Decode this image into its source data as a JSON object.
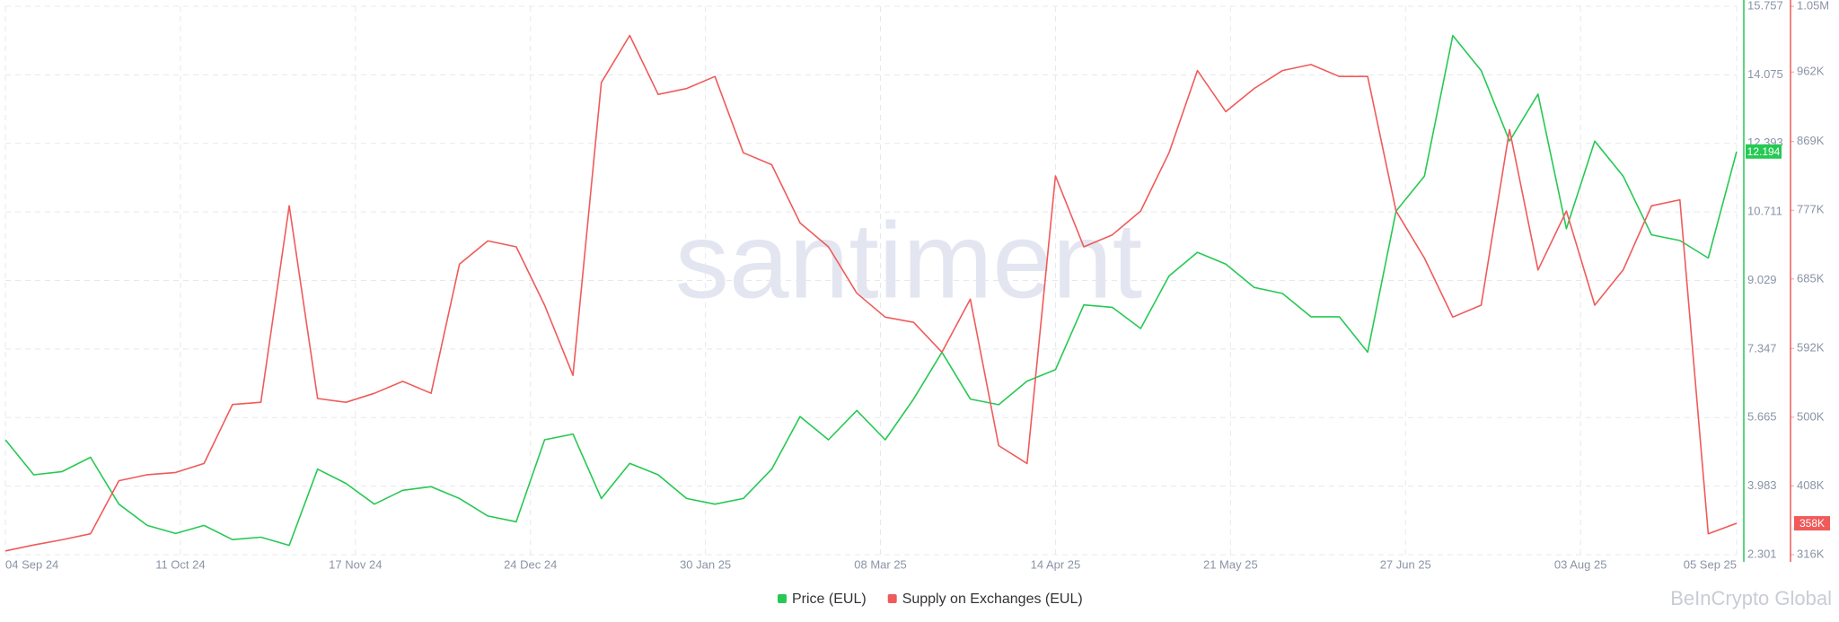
{
  "chart_data": {
    "type": "line",
    "watermark": "santiment",
    "credit": "BeInCrypto Global",
    "x": [
      "04 Sep 24",
      "10 Sep 24",
      "16 Sep 24",
      "22 Sep 24",
      "28 Sep 24",
      "04 Oct 24",
      "10 Oct 24",
      "16 Oct 24",
      "22 Oct 24",
      "28 Oct 24",
      "03 Nov 24",
      "09 Nov 24",
      "15 Nov 24",
      "21 Nov 24",
      "27 Nov 24",
      "03 Dec 24",
      "09 Dec 24",
      "15 Dec 24",
      "21 Dec 24",
      "27 Dec 24",
      "02 Jan 25",
      "08 Jan 25",
      "14 Jan 25",
      "20 Jan 25",
      "26 Jan 25",
      "01 Feb 25",
      "07 Feb 25",
      "13 Feb 25",
      "19 Feb 25",
      "25 Feb 25",
      "03 Mar 25",
      "09 Mar 25",
      "15 Mar 25",
      "21 Mar 25",
      "27 Mar 25",
      "02 Apr 25",
      "08 Apr 25",
      "14 Apr 25",
      "20 Apr 25",
      "26 Apr 25",
      "02 May 25",
      "08 May 25",
      "14 May 25",
      "20 May 25",
      "26 May 25",
      "01 Jun 25",
      "07 Jun 25",
      "13 Jun 25",
      "19 Jun 25",
      "25 Jun 25",
      "01 Jul 25",
      "07 Jul 25",
      "13 Jul 25",
      "19 Jul 25",
      "25 Jul 25",
      "31 Jul 25",
      "06 Aug 25",
      "12 Aug 25",
      "18 Aug 25",
      "24 Aug 25",
      "30 Aug 25",
      "05 Sep 25"
    ],
    "xticks": [
      "04 Sep 24",
      "11 Oct 24",
      "17 Nov 24",
      "24 Dec 24",
      "30 Jan 25",
      "08 Mar 25",
      "14 Apr 25",
      "21 May 25",
      "27 Jun 25",
      "03 Aug 25",
      "05 Sep 25"
    ],
    "ylim": [
      2.301,
      15.757
    ],
    "yticks": [
      2.301,
      3.983,
      5.665,
      7.347,
      9.029,
      10.711,
      12.393,
      14.075,
      15.757
    ],
    "y2lim": [
      316000,
      1050000
    ],
    "y2ticks": [
      {
        "value": 316000,
        "label": "316K"
      },
      {
        "value": 408000,
        "label": "408K"
      },
      {
        "value": 500000,
        "label": "500K"
      },
      {
        "value": 592000,
        "label": "592K"
      },
      {
        "value": 685000,
        "label": "685K"
      },
      {
        "value": 777000,
        "label": "777K"
      },
      {
        "value": 869000,
        "label": "869K"
      },
      {
        "value": 962000,
        "label": "962K"
      },
      {
        "value": 1050000,
        "label": "1.05M"
      }
    ],
    "grid": true,
    "series": [
      {
        "name": "Price (EUL)",
        "color": "#26c953",
        "values": [
          5.12,
          4.26,
          4.34,
          4.69,
          3.54,
          3.02,
          2.82,
          3.02,
          2.67,
          2.73,
          2.53,
          4.4,
          4.05,
          3.54,
          3.88,
          3.97,
          3.68,
          3.25,
          3.11,
          5.12,
          5.26,
          3.68,
          4.54,
          4.26,
          3.68,
          3.54,
          3.68,
          4.4,
          5.69,
          5.12,
          5.84,
          5.12,
          6.12,
          7.27,
          6.12,
          5.98,
          6.56,
          6.84,
          8.43,
          8.37,
          7.85,
          9.14,
          9.72,
          9.43,
          8.86,
          8.71,
          8.14,
          8.14,
          7.27,
          10.73,
          11.59,
          15.04,
          14.18,
          12.45,
          13.6,
          10.3,
          12.45,
          11.59,
          10.15,
          10.01,
          9.58,
          12.194
        ]
      },
      {
        "name": "Supply on Exchanges (EUL)",
        "color": "#f05a5a",
        "axis": "y2",
        "values": [
          321000,
          329000,
          336000,
          344000,
          415000,
          423000,
          426000,
          438000,
          517000,
          520000,
          783000,
          525000,
          520000,
          532000,
          548000,
          532000,
          705000,
          736000,
          728000,
          650000,
          556000,
          948000,
          1011000,
          932000,
          940000,
          956000,
          854000,
          838000,
          760000,
          728000,
          666000,
          634000,
          627000,
          587000,
          658000,
          462000,
          438000,
          823000,
          728000,
          744000,
          776000,
          854000,
          964000,
          909000,
          940000,
          964000,
          972000,
          956000,
          956000,
          776000,
          713000,
          634000,
          650000,
          885000,
          697000,
          776000,
          650000,
          697000,
          783000,
          791000,
          344000,
          358000
        ],
        "value_labels": [
          null,
          null,
          null,
          null,
          null,
          null,
          null,
          null,
          null,
          null,
          null,
          null,
          null,
          null,
          null,
          null,
          null,
          null,
          null,
          null,
          null,
          null,
          null,
          null,
          null,
          null,
          null,
          null,
          null,
          null,
          null,
          null,
          null,
          null,
          null,
          null,
          null,
          null,
          null,
          null,
          null,
          null,
          null,
          null,
          null,
          null,
          null,
          null,
          null,
          null,
          null,
          null,
          null,
          null,
          null,
          null,
          null,
          null,
          null,
          null,
          null,
          "358K"
        ]
      }
    ]
  }
}
